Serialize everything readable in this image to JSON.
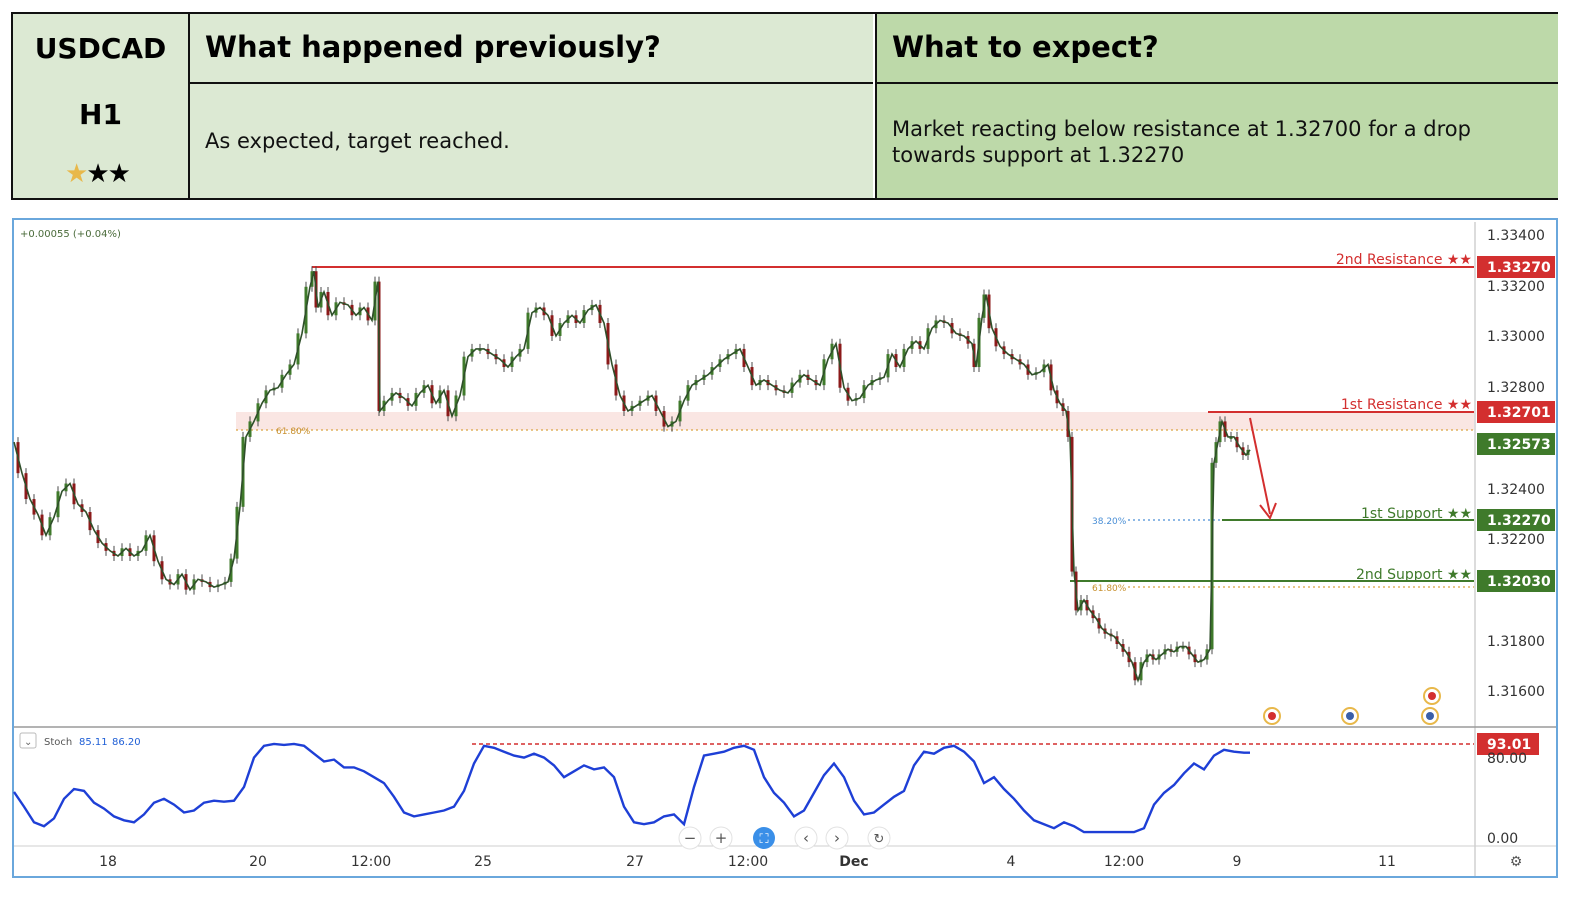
{
  "header": {
    "pair": "USDCAD",
    "timeframe": "H1",
    "col_prev_title": "What happened previously?",
    "col_exp_title": "What to expect?",
    "prev_text": "As expected, target reached.",
    "exp_line1": "Market reacting below resistance at 1.32700 for a drop",
    "exp_line2": "towards support at 1.32270",
    "rating": {
      "filled_gold": 1,
      "filled_black": 2
    }
  },
  "chart_data": {
    "type": "line",
    "title": "",
    "change_readout": "+0.00055 (+0.04%)",
    "y_ticks": [
      "1.33400",
      "1.33200",
      "1.33000",
      "1.32800",
      "1.32400",
      "1.32200",
      "1.31800",
      "1.31600"
    ],
    "ylim": [
      1.315,
      1.3355
    ],
    "x_ticks": [
      "18",
      "20",
      "12:00",
      "25",
      "27",
      "12:00",
      "Dec",
      "4",
      "12:00",
      "9",
      "11"
    ],
    "series": [
      {
        "name": "",
        "points": [
          [
            0,
            1.326
          ],
          [
            8,
            1.3248
          ],
          [
            16,
            1.3238
          ],
          [
            24,
            1.3232
          ],
          [
            32,
            1.3224
          ],
          [
            40,
            1.3231
          ],
          [
            48,
            1.3241
          ],
          [
            56,
            1.3244
          ],
          [
            64,
            1.3236
          ],
          [
            72,
            1.3233
          ],
          [
            80,
            1.3226
          ],
          [
            88,
            1.3221
          ],
          [
            96,
            1.3218
          ],
          [
            104,
            1.3216
          ],
          [
            112,
            1.3219
          ],
          [
            120,
            1.3216
          ],
          [
            128,
            1.3218
          ],
          [
            136,
            1.3224
          ],
          [
            144,
            1.3214
          ],
          [
            152,
            1.3207
          ],
          [
            160,
            1.3205
          ],
          [
            168,
            1.3209
          ],
          [
            176,
            1.3203
          ],
          [
            184,
            1.3207
          ],
          [
            192,
            1.3206
          ],
          [
            200,
            1.3204
          ],
          [
            208,
            1.3205
          ],
          [
            214,
            1.3206
          ],
          [
            220,
            1.3215
          ],
          [
            226,
            1.3235
          ],
          [
            232,
            1.3262
          ],
          [
            240,
            1.3268
          ],
          [
            248,
            1.3275
          ],
          [
            256,
            1.328
          ],
          [
            264,
            1.3281
          ],
          [
            272,
            1.3286
          ],
          [
            280,
            1.329
          ],
          [
            288,
            1.3302
          ],
          [
            296,
            1.332
          ],
          [
            300,
            1.3326
          ],
          [
            304,
            1.3312
          ],
          [
            310,
            1.3318
          ],
          [
            318,
            1.3309
          ],
          [
            326,
            1.3314
          ],
          [
            334,
            1.3313
          ],
          [
            342,
            1.3309
          ],
          [
            350,
            1.3312
          ],
          [
            358,
            1.3307
          ],
          [
            364,
            1.3322
          ],
          [
            366,
            1.3272
          ],
          [
            374,
            1.3276
          ],
          [
            382,
            1.3279
          ],
          [
            390,
            1.3277
          ],
          [
            398,
            1.3274
          ],
          [
            406,
            1.3279
          ],
          [
            414,
            1.3282
          ],
          [
            422,
            1.3275
          ],
          [
            430,
            1.328
          ],
          [
            438,
            1.327
          ],
          [
            446,
            1.3278
          ],
          [
            454,
            1.3293
          ],
          [
            462,
            1.3296
          ],
          [
            470,
            1.3296
          ],
          [
            478,
            1.3294
          ],
          [
            486,
            1.3292
          ],
          [
            494,
            1.3289
          ],
          [
            502,
            1.3293
          ],
          [
            510,
            1.3296
          ],
          [
            518,
            1.331
          ],
          [
            526,
            1.3312
          ],
          [
            534,
            1.3309
          ],
          [
            542,
            1.3301
          ],
          [
            550,
            1.3306
          ],
          [
            558,
            1.3309
          ],
          [
            566,
            1.3306
          ],
          [
            574,
            1.3311
          ],
          [
            582,
            1.3313
          ],
          [
            590,
            1.3306
          ],
          [
            598,
            1.329
          ],
          [
            606,
            1.3278
          ],
          [
            614,
            1.3272
          ],
          [
            622,
            1.3274
          ],
          [
            630,
            1.3276
          ],
          [
            638,
            1.3278
          ],
          [
            646,
            1.3272
          ],
          [
            654,
            1.3266
          ],
          [
            662,
            1.3268
          ],
          [
            670,
            1.3276
          ],
          [
            678,
            1.3282
          ],
          [
            686,
            1.3284
          ],
          [
            694,
            1.3286
          ],
          [
            702,
            1.3289
          ],
          [
            710,
            1.3292
          ],
          [
            718,
            1.3294
          ],
          [
            726,
            1.3296
          ],
          [
            734,
            1.3289
          ],
          [
            742,
            1.3282
          ],
          [
            750,
            1.3284
          ],
          [
            758,
            1.3282
          ],
          [
            766,
            1.328
          ],
          [
            774,
            1.3279
          ],
          [
            782,
            1.3283
          ],
          [
            790,
            1.3286
          ],
          [
            798,
            1.3284
          ],
          [
            806,
            1.3282
          ],
          [
            814,
            1.3292
          ],
          [
            822,
            1.3298
          ],
          [
            830,
            1.3281
          ],
          [
            838,
            1.3276
          ],
          [
            846,
            1.3277
          ],
          [
            854,
            1.3282
          ],
          [
            862,
            1.3284
          ],
          [
            870,
            1.3285
          ],
          [
            878,
            1.3294
          ],
          [
            886,
            1.3289
          ],
          [
            894,
            1.3296
          ],
          [
            902,
            1.3299
          ],
          [
            910,
            1.3296
          ],
          [
            918,
            1.3304
          ],
          [
            926,
            1.3307
          ],
          [
            934,
            1.3306
          ],
          [
            942,
            1.3302
          ],
          [
            950,
            1.3301
          ],
          [
            958,
            1.3298
          ],
          [
            962,
            1.3289
          ],
          [
            968,
            1.3308
          ],
          [
            972,
            1.3317
          ],
          [
            978,
            1.3304
          ],
          [
            986,
            1.3297
          ],
          [
            994,
            1.3294
          ],
          [
            1002,
            1.3292
          ],
          [
            1010,
            1.329
          ],
          [
            1018,
            1.3286
          ],
          [
            1026,
            1.3287
          ],
          [
            1034,
            1.329
          ],
          [
            1040,
            1.328
          ],
          [
            1046,
            1.3275
          ],
          [
            1052,
            1.3272
          ],
          [
            1056,
            1.3262
          ],
          [
            1060,
            1.321
          ],
          [
            1064,
            1.3195
          ],
          [
            1070,
            1.3199
          ],
          [
            1076,
            1.3195
          ],
          [
            1082,
            1.3192
          ],
          [
            1088,
            1.3188
          ],
          [
            1094,
            1.3186
          ],
          [
            1100,
            1.3185
          ],
          [
            1106,
            1.3182
          ],
          [
            1112,
            1.3179
          ],
          [
            1118,
            1.3175
          ],
          [
            1124,
            1.3168
          ],
          [
            1130,
            1.3175
          ],
          [
            1136,
            1.3178
          ],
          [
            1142,
            1.3176
          ],
          [
            1148,
            1.3178
          ],
          [
            1154,
            1.318
          ],
          [
            1160,
            1.3179
          ],
          [
            1166,
            1.3181
          ],
          [
            1172,
            1.3181
          ],
          [
            1178,
            1.3178
          ],
          [
            1184,
            1.3175
          ],
          [
            1190,
            1.3176
          ],
          [
            1196,
            1.318
          ],
          [
            1200,
            1.3252
          ],
          [
            1204,
            1.326
          ],
          [
            1208,
            1.3268
          ],
          [
            1214,
            1.3262
          ],
          [
            1220,
            1.3262
          ],
          [
            1226,
            1.3258
          ],
          [
            1232,
            1.3255
          ],
          [
            1236,
            1.3257
          ]
        ]
      }
    ],
    "levels": [
      {
        "label": "2nd Resistance ★★",
        "value": "1.33270",
        "color": "#d32f2f"
      },
      {
        "label": "1st Resistance ★★",
        "value": "1.32701",
        "color": "#d32f2f"
      },
      {
        "label": "",
        "value": "1.32573",
        "color": "#3f7a2b"
      },
      {
        "label": "1st Support ★★",
        "value": "1.32270",
        "color": "#3f7a2b"
      },
      {
        "label": "2nd Support ★★",
        "value": "1.32030",
        "color": "#3f7a2b"
      }
    ],
    "fib_labels": [
      "61.80%",
      "38.20%",
      "61.80%"
    ],
    "indicator": {
      "name": "Stoch",
      "value_k": "85.11",
      "value_d": "86.20",
      "level_label": "93.01",
      "y_ticks": [
        "80.00",
        "0.00"
      ],
      "ylim": [
        0,
        100
      ],
      "points": [
        [
          0,
          45
        ],
        [
          10,
          30
        ],
        [
          20,
          14
        ],
        [
          30,
          10
        ],
        [
          40,
          18
        ],
        [
          50,
          38
        ],
        [
          60,
          48
        ],
        [
          70,
          46
        ],
        [
          80,
          34
        ],
        [
          90,
          28
        ],
        [
          100,
          20
        ],
        [
          110,
          16
        ],
        [
          120,
          14
        ],
        [
          130,
          22
        ],
        [
          140,
          34
        ],
        [
          150,
          38
        ],
        [
          160,
          32
        ],
        [
          170,
          24
        ],
        [
          180,
          26
        ],
        [
          190,
          34
        ],
        [
          200,
          36
        ],
        [
          210,
          35
        ],
        [
          220,
          36
        ],
        [
          230,
          50
        ],
        [
          240,
          80
        ],
        [
          250,
          92
        ],
        [
          260,
          94
        ],
        [
          270,
          93
        ],
        [
          280,
          94
        ],
        [
          290,
          92
        ],
        [
          300,
          84
        ],
        [
          310,
          76
        ],
        [
          320,
          78
        ],
        [
          330,
          70
        ],
        [
          340,
          70
        ],
        [
          350,
          66
        ],
        [
          360,
          60
        ],
        [
          370,
          54
        ],
        [
          380,
          40
        ],
        [
          390,
          24
        ],
        [
          400,
          20
        ],
        [
          410,
          22
        ],
        [
          420,
          24
        ],
        [
          430,
          26
        ],
        [
          440,
          30
        ],
        [
          450,
          46
        ],
        [
          460,
          74
        ],
        [
          470,
          92
        ],
        [
          480,
          90
        ],
        [
          490,
          86
        ],
        [
          500,
          82
        ],
        [
          510,
          80
        ],
        [
          520,
          84
        ],
        [
          530,
          80
        ],
        [
          540,
          72
        ],
        [
          550,
          60
        ],
        [
          560,
          66
        ],
        [
          570,
          72
        ],
        [
          580,
          68
        ],
        [
          590,
          70
        ],
        [
          600,
          60
        ],
        [
          610,
          30
        ],
        [
          620,
          14
        ],
        [
          630,
          12
        ],
        [
          640,
          14
        ],
        [
          650,
          20
        ],
        [
          660,
          22
        ],
        [
          670,
          12
        ],
        [
          680,
          50
        ],
        [
          690,
          82
        ],
        [
          700,
          84
        ],
        [
          710,
          86
        ],
        [
          720,
          90
        ],
        [
          730,
          92
        ],
        [
          740,
          88
        ],
        [
          750,
          60
        ],
        [
          760,
          44
        ],
        [
          770,
          34
        ],
        [
          780,
          20
        ],
        [
          790,
          26
        ],
        [
          800,
          44
        ],
        [
          810,
          62
        ],
        [
          820,
          74
        ],
        [
          830,
          60
        ],
        [
          840,
          36
        ],
        [
          850,
          22
        ],
        [
          860,
          24
        ],
        [
          870,
          32
        ],
        [
          880,
          40
        ],
        [
          890,
          46
        ],
        [
          900,
          72
        ],
        [
          910,
          86
        ],
        [
          920,
          84
        ],
        [
          930,
          90
        ],
        [
          940,
          92
        ],
        [
          950,
          86
        ],
        [
          960,
          76
        ],
        [
          970,
          54
        ],
        [
          980,
          60
        ],
        [
          990,
          48
        ],
        [
          1000,
          38
        ],
        [
          1010,
          26
        ],
        [
          1020,
          16
        ],
        [
          1030,
          12
        ],
        [
          1040,
          8
        ],
        [
          1050,
          14
        ],
        [
          1060,
          10
        ],
        [
          1070,
          4
        ],
        [
          1080,
          4
        ],
        [
          1090,
          4
        ],
        [
          1100,
          4
        ],
        [
          1110,
          4
        ],
        [
          1120,
          4
        ],
        [
          1130,
          8
        ],
        [
          1140,
          32
        ],
        [
          1150,
          44
        ],
        [
          1160,
          52
        ],
        [
          1170,
          64
        ],
        [
          1180,
          74
        ],
        [
          1190,
          68
        ],
        [
          1200,
          82
        ],
        [
          1210,
          88
        ],
        [
          1220,
          86
        ],
        [
          1230,
          85
        ],
        [
          1236,
          85
        ]
      ]
    }
  },
  "toolbar": {
    "zoom_out_icon": "minus-icon",
    "zoom_in_icon": "plus-icon",
    "reset_icon": "reset-icon",
    "settings_icon": "gear-icon"
  }
}
